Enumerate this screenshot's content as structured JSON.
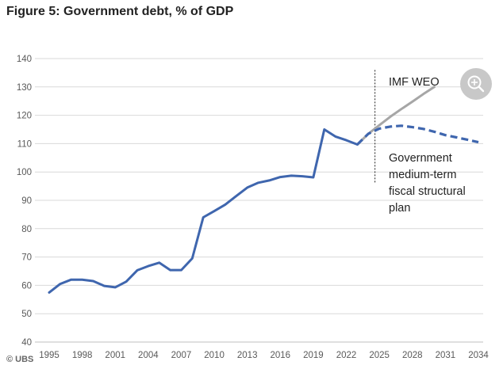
{
  "title": "Figure 5: Government debt, % of GDP",
  "source": "UBS",
  "chart_data": {
    "type": "line",
    "title": "Figure 5: Government debt, % of GDP",
    "xlabel": "",
    "ylabel": "",
    "xlim": [
      1995,
      2034
    ],
    "ylim": [
      40,
      140
    ],
    "yticks": [
      40,
      50,
      60,
      70,
      80,
      90,
      100,
      110,
      120,
      130,
      140
    ],
    "xtick_labels": [
      "1995",
      "1998",
      "2001",
      "2004",
      "2007",
      "2010",
      "2013",
      "2016",
      "2019",
      "2022",
      "2025",
      "2028",
      "2031",
      "2034"
    ],
    "grid": "horizontal",
    "vertical_marker_x": 2024.6,
    "series": [
      {
        "name": "",
        "style": "solid",
        "color": "#3f66ae",
        "x": [
          1995,
          1996,
          1997,
          1998,
          1999,
          2000,
          2001,
          2002,
          2003,
          2004,
          2005,
          2006,
          2007,
          2008,
          2009,
          2010,
          2011,
          2012,
          2013,
          2014,
          2015,
          2016,
          2017,
          2018,
          2019,
          2020,
          2021,
          2022,
          2023
        ],
        "y": [
          57.5,
          60.5,
          62,
          62,
          61.5,
          59.8,
          59.3,
          61.3,
          65.3,
          66.8,
          68,
          65.4,
          65.4,
          69.5,
          84,
          86.2,
          88.5,
          91.5,
          94.5,
          96.2,
          97,
          98.2,
          98.7,
          98.5,
          98.1,
          115,
          112.5,
          111.2,
          109.7
        ]
      },
      {
        "name": "Government medium-term fiscal structural plan",
        "style": "dashed",
        "color": "#3f66ae",
        "x": [
          2023,
          2024,
          2025,
          2026,
          2027,
          2028,
          2029,
          2030,
          2031,
          2032,
          2033,
          2034
        ],
        "y": [
          109.7,
          113.5,
          115.3,
          116,
          116.3,
          115.8,
          115.2,
          114.2,
          113,
          112.2,
          111.4,
          110.5
        ]
      },
      {
        "name": "IMF WEO",
        "style": "solid",
        "color": "#a6a6a6",
        "x": [
          2023,
          2024,
          2025,
          2026,
          2027,
          2028,
          2029,
          2030
        ],
        "y": [
          109.7,
          113.5,
          116.5,
          119.5,
          122.2,
          124.8,
          127.5,
          130
        ]
      }
    ],
    "annotations": [
      {
        "text": "IMF WEO",
        "series": "IMF WEO"
      },
      {
        "text": [
          "Government",
          "medium-term",
          "fiscal structural",
          "plan"
        ],
        "series": "Government medium-term fiscal structural plan"
      }
    ]
  },
  "zoom_button": {
    "icon": "zoom-in-icon",
    "color": "#c8c8c8"
  },
  "colors": {
    "primary_line": "#3f66ae",
    "imf_line": "#a6a6a6",
    "grid": "#d9d9d9",
    "axis": "#bfbfbf",
    "marker": "#333333"
  }
}
